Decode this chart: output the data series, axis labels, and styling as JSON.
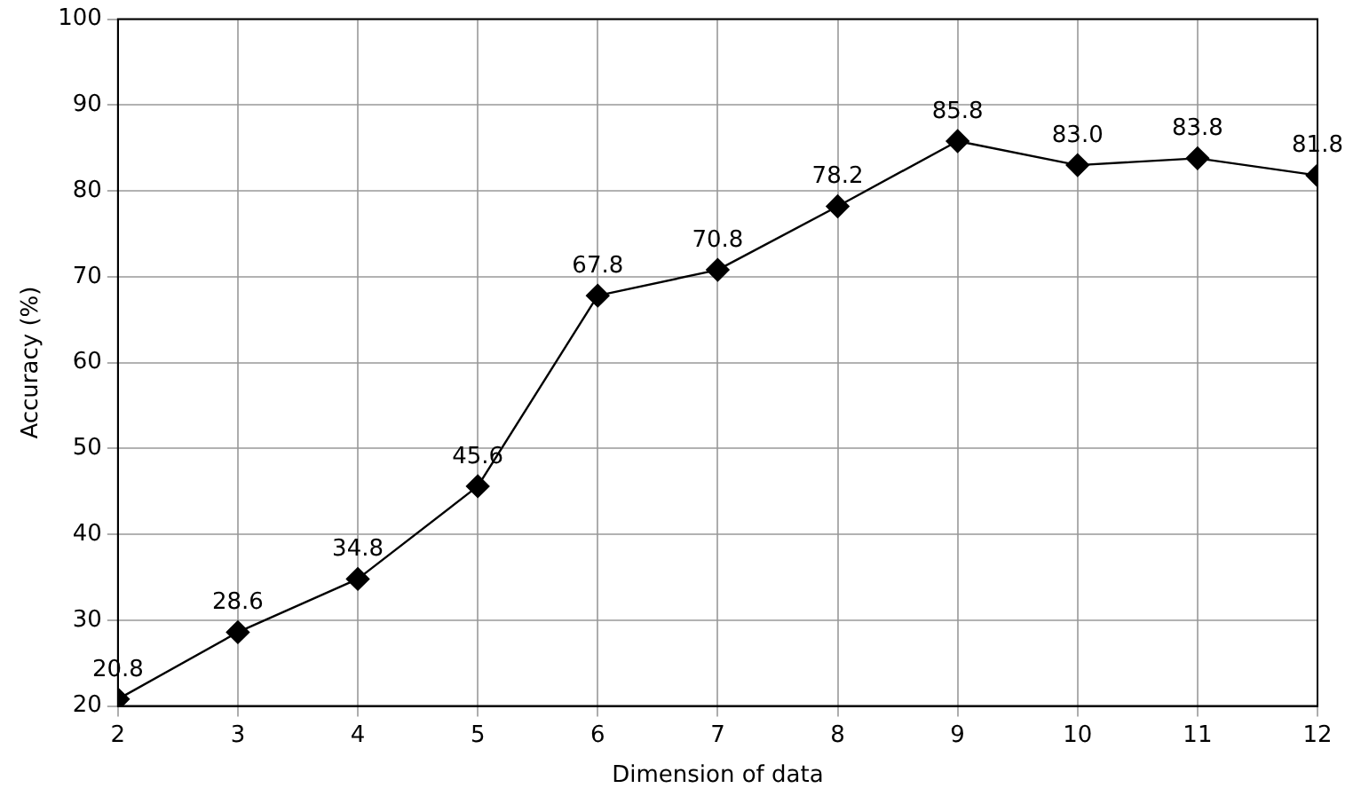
{
  "chart_data": {
    "type": "line",
    "xlabel": "Dimension of data",
    "ylabel": "Accuracy (%)",
    "x": [
      2,
      3,
      4,
      5,
      6,
      7,
      8,
      9,
      10,
      11,
      12
    ],
    "series": [
      {
        "color": "#000000",
        "values": [
          20.8,
          28.6,
          34.8,
          45.6,
          67.8,
          70.8,
          78.2,
          85.8,
          83.0,
          83.8,
          81.8
        ],
        "value_labels": [
          "20.8",
          "28.6",
          "34.8",
          "45.6",
          "67.8",
          "70.8",
          "78.2",
          "85.8",
          "83.0",
          "83.8",
          "81.8"
        ]
      }
    ],
    "xlim": [
      2,
      12
    ],
    "xticks": [
      2,
      3,
      4,
      5,
      6,
      7,
      8,
      9,
      10,
      11,
      12
    ],
    "ylim": [
      20,
      100
    ],
    "yticks": [
      20,
      30,
      40,
      50,
      60,
      70,
      80,
      90,
      100
    ],
    "grid": true,
    "legend": false,
    "marker": "diamond",
    "line_style": "solid"
  }
}
